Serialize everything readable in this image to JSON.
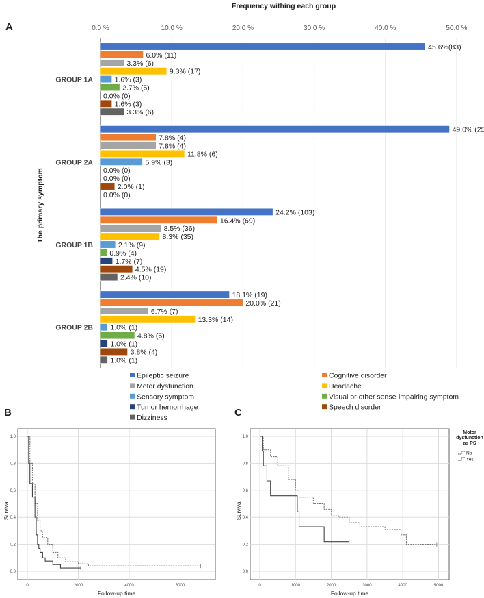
{
  "panel_labels": {
    "a": "A",
    "b": "B",
    "c": "C"
  },
  "chart_data": [
    {
      "type": "bar",
      "orientation": "horizontal",
      "title": "Frequency withing each group",
      "xlabel": "Frequency withing each group",
      "ylabel": "The primary symptom",
      "xlim": [
        0,
        50
      ],
      "xticks": [
        "0.0 %",
        "10.0 %",
        "20.0 %",
        "30.0 %",
        "40.0 %",
        "50.0 %"
      ],
      "grid": true,
      "legend_position": "bottom",
      "categories": [
        "GROUP 1A",
        "GROUP 2A",
        "GROUP 1B",
        "GROUP 2B"
      ],
      "series": [
        {
          "name": "Epileptic seizure",
          "color": "#4472C4",
          "values": [
            45.6,
            49.0,
            24.2,
            18.1
          ],
          "labels": [
            "45.6%(83)",
            "49.0% (25)",
            "24.2% (103)",
            "18.1% (19)"
          ]
        },
        {
          "name": "Cognitive disorder",
          "color": "#ED7D31",
          "values": [
            6.0,
            7.8,
            16.4,
            20.0
          ],
          "labels": [
            "6.0% (11)",
            "7.8% (4)",
            "16.4% (69)",
            "20.0% (21)"
          ]
        },
        {
          "name": "Motor dysfunction",
          "color": "#A5A5A5",
          "values": [
            3.3,
            7.8,
            8.5,
            6.7
          ],
          "labels": [
            "3.3% (6)",
            "7.8% (4)",
            "8.5% (36)",
            "6.7% (7)"
          ]
        },
        {
          "name": "Headache",
          "color": "#FFC000",
          "values": [
            9.3,
            11.8,
            8.3,
            13.3
          ],
          "labels": [
            "9.3% (17)",
            "11.8% (6)",
            "8.3% (35)",
            "13.3% (14)"
          ]
        },
        {
          "name": "Sensory symptom",
          "color": "#5B9BD5",
          "values": [
            1.6,
            5.9,
            2.1,
            1.0
          ],
          "labels": [
            "1.6% (3)",
            "5.9% (3)",
            "2.1% (9)",
            "1.0% (1)"
          ]
        },
        {
          "name": "Visual or other sense-impairing symptom",
          "color": "#70AD47",
          "values": [
            2.7,
            0.0,
            0.9,
            4.8
          ],
          "labels": [
            "2.7% (5)",
            "0.0% (0)",
            "0.9% (4)",
            "4.8% (5)"
          ]
        },
        {
          "name": "Tumor hemorrhage",
          "color": "#264478",
          "values": [
            0.0,
            0.0,
            1.7,
            1.0
          ],
          "labels": [
            "0.0% (0)",
            "0.0% (0)",
            "1.7% (7)",
            "1.0% (1)"
          ]
        },
        {
          "name": "Speech disorder",
          "color": "#9E480E",
          "values": [
            1.6,
            2.0,
            4.5,
            3.8
          ],
          "labels": [
            "1.6% (3)",
            "2.0% (1)",
            "4.5% (19)",
            "3.8% (4)"
          ]
        },
        {
          "name": "Dizziness",
          "color": "#636363",
          "values": [
            3.3,
            0.0,
            2.4,
            1.0
          ],
          "labels": [
            "3.3% (6)",
            "0.0% (0)",
            "2.4% (10)",
            "1.0% (1)"
          ]
        }
      ]
    },
    {
      "type": "line",
      "subtype": "kaplan-meier",
      "xlabel": "Follow-up time",
      "ylabel": "Survival",
      "xlim": [
        0,
        7400
      ],
      "ylim": [
        0,
        1.05
      ],
      "xticks": [
        0,
        2000,
        4000,
        6000
      ],
      "yticks": [
        "0,0",
        "0,2",
        "0,4",
        "0,6",
        "0,8",
        "1,0"
      ],
      "grid": true,
      "series": [
        {
          "name": "dashed",
          "style": "dashed",
          "x": [
            0,
            100,
            200,
            300,
            400,
            500,
            600,
            800,
            1000,
            1200,
            1500,
            2000,
            2400,
            6800
          ],
          "y": [
            1.0,
            0.8,
            0.65,
            0.5,
            0.38,
            0.3,
            0.25,
            0.2,
            0.14,
            0.1,
            0.07,
            0.055,
            0.04,
            0.04
          ]
        },
        {
          "name": "solid",
          "style": "solid",
          "x": [
            0,
            50,
            100,
            200,
            300,
            350,
            400,
            450,
            500,
            600,
            700,
            1000,
            1300,
            2100
          ],
          "y": [
            1.0,
            0.8,
            0.65,
            0.55,
            0.4,
            0.27,
            0.2,
            0.17,
            0.14,
            0.1,
            0.075,
            0.05,
            0.025,
            0.025
          ]
        }
      ]
    },
    {
      "type": "line",
      "subtype": "kaplan-meier",
      "xlabel": "Follow-up time",
      "ylabel": "Survival",
      "xlim": [
        0,
        5300
      ],
      "ylim": [
        0,
        1.05
      ],
      "xticks": [
        0,
        1000,
        2000,
        3000,
        4000,
        5000
      ],
      "yticks": [
        "0,0",
        "0,2",
        "0,4",
        "0,6",
        "0,8",
        "1,0"
      ],
      "grid": true,
      "legend_title": "Motor dysfunction as PS",
      "legend_position": "right",
      "series": [
        {
          "name": "No",
          "style": "dashed",
          "x": [
            0,
            100,
            300,
            500,
            800,
            1000,
            1100,
            1500,
            1800,
            2000,
            2200,
            2500,
            2800,
            3500,
            3950,
            4100,
            4950
          ],
          "y": [
            1.0,
            0.9,
            0.85,
            0.78,
            0.68,
            0.6,
            0.55,
            0.5,
            0.46,
            0.41,
            0.4,
            0.36,
            0.33,
            0.31,
            0.27,
            0.2,
            0.2
          ]
        },
        {
          "name": "Yes",
          "style": "solid",
          "x": [
            0,
            70,
            100,
            200,
            300,
            1030,
            1050,
            1100,
            1800,
            2500
          ],
          "y": [
            1.0,
            0.89,
            0.78,
            0.67,
            0.56,
            0.56,
            0.44,
            0.33,
            0.22,
            0.22
          ]
        }
      ]
    }
  ]
}
